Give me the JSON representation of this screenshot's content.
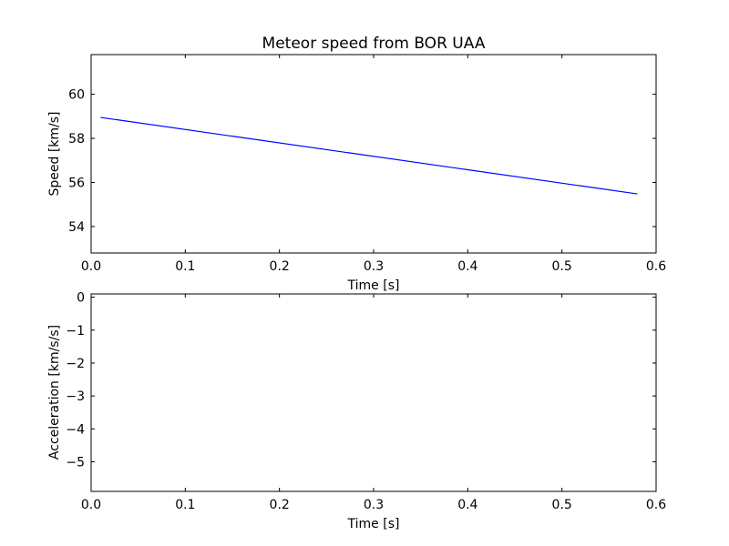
{
  "chart_data": [
    {
      "type": "line",
      "title": "Meteor speed from  BOR UAA",
      "xlabel": "Time [s]",
      "ylabel": "Speed [km/s]",
      "xlim": [
        0.0,
        0.6
      ],
      "ylim": [
        52.8,
        61.8
      ],
      "xticks": [
        0.0,
        0.1,
        0.2,
        0.3,
        0.4,
        0.5,
        0.6
      ],
      "xtick_labels": [
        "0.0",
        "0.1",
        "0.2",
        "0.3",
        "0.4",
        "0.5",
        "0.6"
      ],
      "yticks": [
        54,
        56,
        58,
        60
      ],
      "ytick_labels": [
        "54",
        "56",
        "58",
        "60"
      ],
      "grid": false,
      "color": "#0000ff",
      "series": [
        {
          "x": [
            0.01,
            0.58
          ],
          "y": [
            58.95,
            55.48
          ]
        }
      ]
    },
    {
      "type": "line",
      "title": "",
      "xlabel": "Time [s]",
      "ylabel": "Acceleration [km/s/s]",
      "xlim": [
        0.0,
        0.6
      ],
      "ylim": [
        -5.9,
        0.1
      ],
      "xticks": [
        0.0,
        0.1,
        0.2,
        0.3,
        0.4,
        0.5,
        0.6
      ],
      "xtick_labels": [
        "0.0",
        "0.1",
        "0.2",
        "0.3",
        "0.4",
        "0.5",
        "0.6"
      ],
      "yticks": [
        0,
        -1,
        -2,
        -3,
        -4,
        -5
      ],
      "ytick_labels": [
        "0",
        "−1",
        "−2",
        "−3",
        "−4",
        "−5"
      ],
      "grid": false,
      "color": "#0000ff",
      "series": []
    }
  ]
}
